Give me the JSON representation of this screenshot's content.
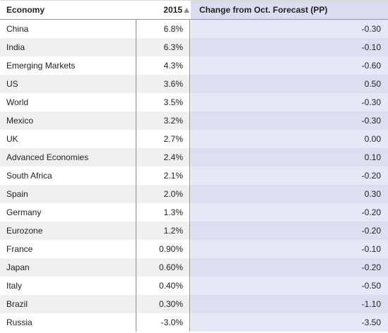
{
  "header": {
    "economy": "Economy",
    "year": "2015",
    "change": "Change from Oct. Forecast (PP)"
  },
  "rows": [
    {
      "economy": "China",
      "year": "6.8%",
      "change": "-0.30"
    },
    {
      "economy": "India",
      "year": "6.3%",
      "change": "-0.10"
    },
    {
      "economy": "Emerging Markets",
      "year": "4.3%",
      "change": "-0.60"
    },
    {
      "economy": "US",
      "year": "3.6%",
      "change": "0.50"
    },
    {
      "economy": "World",
      "year": "3.5%",
      "change": "-0.30"
    },
    {
      "economy": "Mexico",
      "year": "3.2%",
      "change": "-0.30"
    },
    {
      "economy": "UK",
      "year": "2.7%",
      "change": "0.00"
    },
    {
      "economy": "Advanced Economies",
      "year": "2.4%",
      "change": "0.10"
    },
    {
      "economy": "South Africa",
      "year": "2.1%",
      "change": "-0.20"
    },
    {
      "economy": "Spain",
      "year": "2.0%",
      "change": "0.30"
    },
    {
      "economy": "Germany",
      "year": "1.3%",
      "change": "-0.20"
    },
    {
      "economy": "Eurozone",
      "year": "1.2%",
      "change": "-0.20"
    },
    {
      "economy": "France",
      "year": "0.90%",
      "change": "-0.10"
    },
    {
      "economy": "Japan",
      "year": "0.60%",
      "change": "-0.20"
    },
    {
      "economy": "Italy",
      "year": "0.40%",
      "change": "-0.50"
    },
    {
      "economy": "Brazil",
      "year": "0.30%",
      "change": "-1.10"
    },
    {
      "economy": "Russia",
      "year": "-3.0%",
      "change": "-3.50"
    }
  ],
  "sort": {
    "column": "year",
    "direction": "ascending-icon"
  }
}
